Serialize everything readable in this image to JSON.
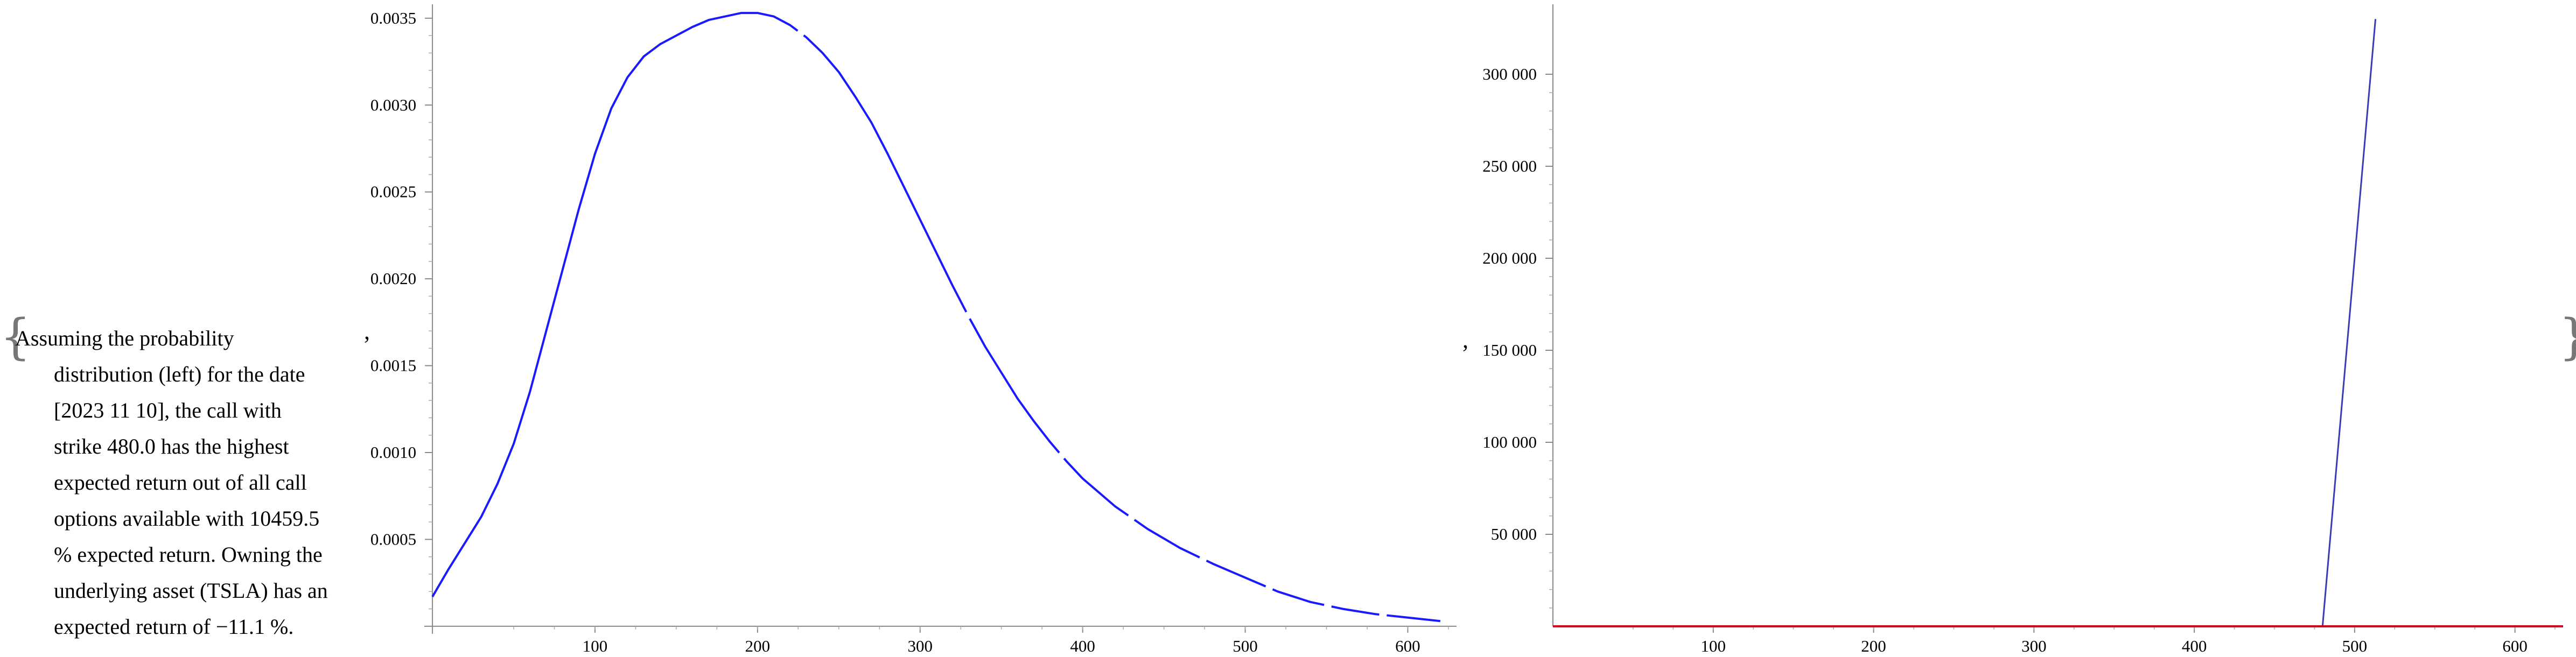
{
  "wrapper": {
    "open_brace": "{",
    "close_brace": "}",
    "separator": ","
  },
  "text": {
    "lines": [
      "Assuming the probability",
      "distribution (left) for the date",
      "[2023 11 10], the call with",
      "strike 480.0 has the highest",
      "expected return out of all call",
      "options available with 10459.5",
      "% expected return. Owning the",
      "underlying asset (TSLA) has an",
      "expected return of −11.1 %."
    ]
  },
  "chart_data": [
    {
      "type": "line",
      "title": "",
      "xlabel": "",
      "ylabel": "",
      "xlim": [
        -5,
        630
      ],
      "ylim": [
        -5e-05,
        0.00358
      ],
      "x_ticks": [
        100,
        200,
        300,
        400,
        500,
        600
      ],
      "x_tick_labels": [
        "100",
        "200",
        "300",
        "400",
        "500",
        "600"
      ],
      "y_ticks": [
        0.0005,
        0.001,
        0.0015,
        0.002,
        0.0025,
        0.003,
        0.0035
      ],
      "y_tick_labels": [
        "0.0005",
        "0.0010",
        "0.0015",
        "0.0020",
        "0.0025",
        "0.0030",
        "0.0035"
      ],
      "line_color": "#1a1aff",
      "series": [
        {
          "x": [
            0,
            10,
            20,
            30,
            40,
            50,
            60,
            70,
            80,
            90,
            100,
            110,
            120,
            130,
            140,
            150,
            160,
            170,
            180,
            190,
            200,
            210,
            220,
            230,
            240,
            250,
            260,
            270,
            280,
            290,
            300,
            310,
            320,
            330,
            340,
            350,
            360,
            370,
            380,
            390,
            400,
            420,
            440,
            460,
            480,
            500,
            520,
            540,
            560,
            580,
            600,
            620
          ],
          "y": [
            0.00017,
            0.00033,
            0.00048,
            0.00063,
            0.00082,
            0.00105,
            0.00135,
            0.0017,
            0.00205,
            0.0024,
            0.00272,
            0.00298,
            0.00316,
            0.00328,
            0.00335,
            0.0034,
            0.00345,
            0.00349,
            0.00351,
            0.00353,
            0.00353,
            0.00351,
            0.00346,
            0.00339,
            0.0033,
            0.00319,
            0.00305,
            0.0029,
            0.00272,
            0.00253,
            0.00234,
            0.00215,
            0.00196,
            0.00178,
            0.00161,
            0.00146,
            0.00131,
            0.00118,
            0.00106,
            0.00095,
            0.00085,
            0.00069,
            0.00056,
            0.00045,
            0.00036,
            0.00028,
            0.0002,
            0.00014,
            0.0001,
            7e-05,
            5e-05,
            3e-05
          ]
        }
      ]
    },
    {
      "type": "line",
      "title": "",
      "xlabel": "",
      "ylabel": "",
      "xlim": [
        0,
        630
      ],
      "ylim": [
        0,
        338000
      ],
      "x_ticks": [
        100,
        200,
        300,
        400,
        500,
        600
      ],
      "x_tick_labels": [
        "100",
        "200",
        "300",
        "400",
        "500",
        "600"
      ],
      "y_ticks": [
        50000,
        100000,
        150000,
        200000,
        250000,
        300000
      ],
      "y_tick_labels": [
        "50 000",
        "100 000",
        "150 000",
        "200 000",
        "250 000",
        "300 000"
      ],
      "series": [
        {
          "color": "#3b3bb5",
          "x": [
            480,
            513
          ],
          "y": [
            0,
            330000
          ]
        },
        {
          "color": "#d0021b",
          "x": [
            0,
            630
          ],
          "y": [
            0,
            0
          ]
        }
      ]
    }
  ]
}
